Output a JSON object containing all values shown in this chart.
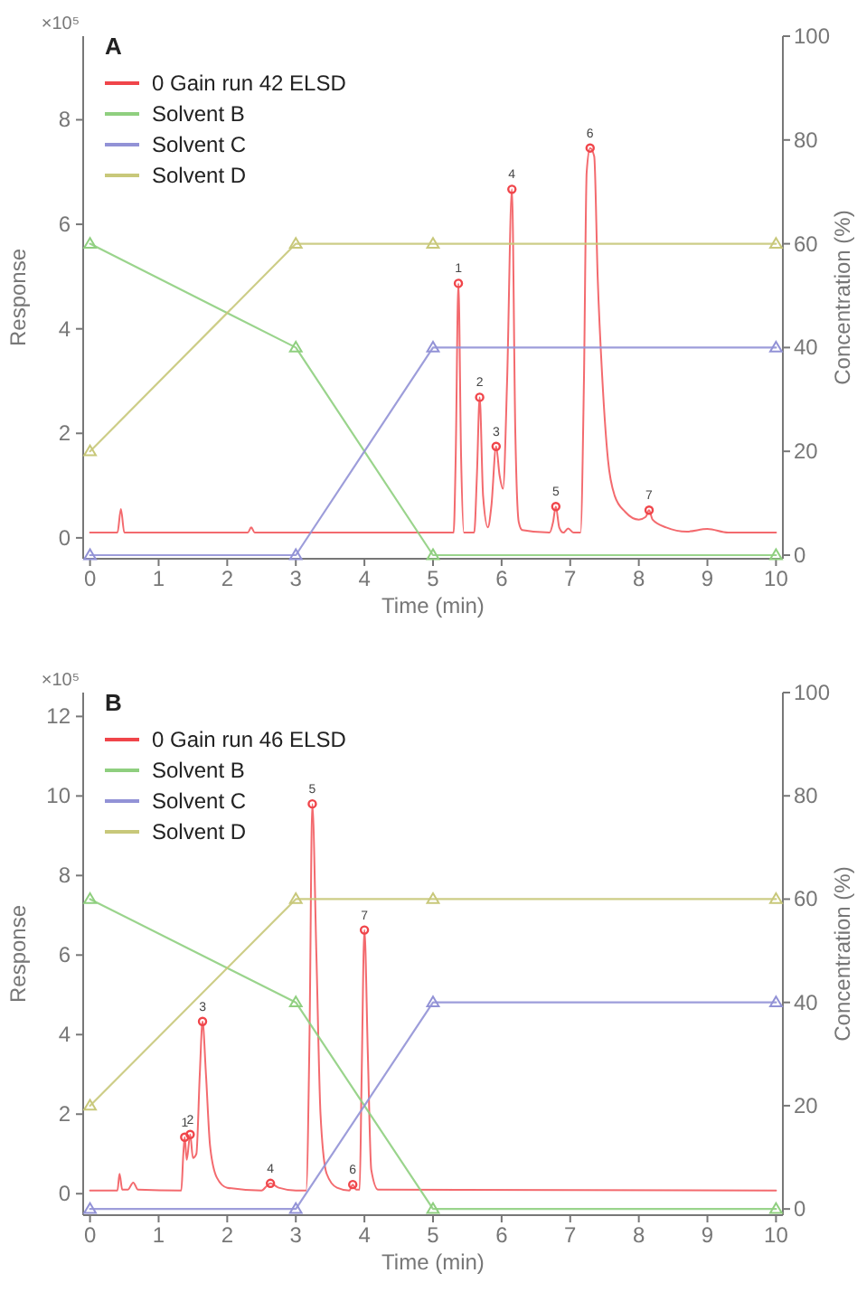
{
  "chart_data": [
    {
      "type": "line",
      "title": "A",
      "xlabel": "Time (min)",
      "ylabel": "Response",
      "y2label": "Concentration (%)",
      "xlim": [
        -0.1,
        10.1
      ],
      "xticks": [
        0,
        1,
        2,
        3,
        4,
        5,
        6,
        7,
        8,
        9,
        10
      ],
      "ylim": [
        -0.4,
        9.6
      ],
      "yticks": [
        0,
        2,
        4,
        6,
        8
      ],
      "y2lim": [
        -0.7,
        100
      ],
      "y2ticks": [
        0,
        20,
        40,
        60,
        80,
        100
      ],
      "legend": "top left",
      "grid": false,
      "annotations": [
        "×10⁵",
        {
          "text": "1",
          "x": 5.37,
          "y": 4.87
        },
        {
          "text": "2",
          "x": 5.68,
          "y": 2.69
        },
        {
          "text": "3",
          "x": 5.92,
          "y": 1.75
        },
        {
          "text": "4",
          "x": 6.15,
          "y": 6.67
        },
        {
          "text": "5",
          "x": 6.79,
          "y": 0.6
        },
        {
          "text": "6",
          "x": 7.29,
          "y": 7.46
        },
        {
          "text": "7",
          "x": 8.15,
          "y": 0.53
        }
      ],
      "series": [
        {
          "name": "0 Gain run 42 ELSD",
          "type": "line",
          "color": "#f0454a",
          "marker": "none",
          "x": [
            0,
            0.4,
            0.45,
            0.5,
            2.3,
            2.35,
            2.4,
            5.3,
            5.33,
            5.37,
            5.41,
            5.45,
            5.6,
            5.64,
            5.68,
            5.73,
            5.8,
            5.85,
            5.92,
            5.97,
            6.02,
            6.08,
            6.15,
            6.2,
            6.25,
            6.3,
            6.7,
            6.75,
            6.79,
            6.84,
            6.9,
            6.97,
            7.05,
            7.15,
            7.2,
            7.24,
            7.29,
            7.35,
            7.4,
            7.47,
            7.55,
            7.65,
            7.8,
            8.0,
            8.1,
            8.15,
            8.2,
            8.4,
            8.7,
            9.0,
            9.3,
            10
          ],
          "values": [
            0.1,
            0.1,
            0.55,
            0.1,
            0.1,
            0.2,
            0.1,
            0.1,
            1.5,
            4.87,
            1.5,
            0.1,
            0.1,
            1.2,
            2.69,
            0.8,
            0.2,
            0.6,
            1.75,
            1.2,
            0.94,
            3,
            6.67,
            2,
            0.3,
            0.15,
            0.1,
            0.3,
            0.6,
            0.2,
            0.1,
            0.18,
            0.1,
            0.1,
            3,
            7,
            7.46,
            7.3,
            5,
            3,
            1.5,
            0.8,
            0.5,
            0.35,
            0.4,
            0.53,
            0.35,
            0.2,
            0.12,
            0.17,
            0.1,
            0.1
          ]
        },
        {
          "type": "scatter",
          "color": "#f0454a",
          "marker": "circle",
          "x": [
            5.37,
            5.68,
            5.92,
            6.15,
            6.79,
            7.29,
            8.15
          ],
          "values": [
            4.87,
            2.69,
            1.75,
            6.67,
            0.6,
            7.46,
            0.53
          ]
        },
        {
          "name": "Solvent B",
          "type": "line",
          "axis": "y2",
          "color": "#8fcf7f",
          "marker": "triangle",
          "x": [
            0,
            3,
            5,
            10
          ],
          "values": [
            60,
            40,
            0,
            0
          ]
        },
        {
          "name": "Solvent C",
          "type": "line",
          "axis": "y2",
          "color": "#9292d6",
          "marker": "triangle",
          "x": [
            0,
            3,
            5,
            10
          ],
          "values": [
            0,
            0,
            40,
            40
          ]
        },
        {
          "name": "Solvent D",
          "type": "line",
          "axis": "y2",
          "color": "#c8c87a",
          "marker": "triangle",
          "x": [
            0,
            3,
            5,
            10
          ],
          "values": [
            20,
            60,
            60,
            60
          ]
        }
      ]
    },
    {
      "type": "line",
      "title": "B",
      "xlabel": "Time (min)",
      "ylabel": "Response",
      "y2label": "Concentration (%)",
      "xlim": [
        -0.1,
        10.1
      ],
      "xticks": [
        0,
        1,
        2,
        3,
        4,
        5,
        6,
        7,
        8,
        9,
        10
      ],
      "ylim": [
        -0.54,
        12.6
      ],
      "yticks": [
        0,
        2,
        4,
        6,
        8,
        10,
        12
      ],
      "y2lim": [
        -1.2,
        100
      ],
      "y2ticks": [
        0,
        20,
        40,
        60,
        80,
        100
      ],
      "legend": "top left",
      "grid": false,
      "annotations": [
        "×10⁵",
        {
          "text": "1",
          "x": 1.38,
          "y": 1.42
        },
        {
          "text": "2",
          "x": 1.46,
          "y": 1.49
        },
        {
          "text": "3",
          "x": 1.64,
          "y": 4.33
        },
        {
          "text": "4",
          "x": 2.63,
          "y": 0.26
        },
        {
          "text": "5",
          "x": 3.24,
          "y": 9.8
        },
        {
          "text": "6",
          "x": 3.83,
          "y": 0.23
        },
        {
          "text": "7",
          "x": 4.0,
          "y": 6.63
        }
      ],
      "series": [
        {
          "name": "0 Gain run 46 ELSD",
          "type": "line",
          "color": "#f0454a",
          "marker": "none",
          "x": [
            0,
            0.4,
            0.43,
            0.47,
            0.55,
            0.63,
            0.7,
            1.33,
            1.36,
            1.38,
            1.41,
            1.46,
            1.5,
            1.55,
            1.6,
            1.64,
            1.69,
            1.75,
            1.85,
            2.0,
            2.5,
            2.58,
            2.63,
            2.75,
            3.0,
            3.15,
            3.2,
            3.24,
            3.3,
            3.36,
            3.45,
            3.6,
            3.78,
            3.83,
            3.88,
            3.93,
            3.96,
            4.0,
            4.05,
            4.1,
            4.2,
            10
          ],
          "values": [
            0.08,
            0.08,
            0.5,
            0.1,
            0.1,
            0.28,
            0.1,
            0.08,
            1.0,
            1.42,
            0.85,
            1.49,
            0.9,
            1.0,
            3.0,
            4.33,
            3.0,
            1.2,
            0.4,
            0.15,
            0.08,
            0.2,
            0.26,
            0.15,
            0.08,
            0.08,
            4,
            9.8,
            6,
            2,
            0.5,
            0.15,
            0.08,
            0.23,
            0.1,
            0.1,
            3,
            6.63,
            3.5,
            0.6,
            0.1,
            0.08
          ]
        },
        {
          "type": "scatter",
          "color": "#f0454a",
          "marker": "circle",
          "x": [
            1.38,
            1.46,
            1.64,
            2.63,
            3.24,
            3.83,
            4.0
          ],
          "values": [
            1.42,
            1.49,
            4.33,
            0.26,
            9.8,
            0.23,
            6.63
          ]
        },
        {
          "name": "Solvent B",
          "type": "line",
          "axis": "y2",
          "color": "#8fcf7f",
          "marker": "triangle",
          "x": [
            0,
            3,
            5,
            10
          ],
          "values": [
            60,
            40,
            0,
            0
          ]
        },
        {
          "name": "Solvent C",
          "type": "line",
          "axis": "y2",
          "color": "#9292d6",
          "marker": "triangle",
          "x": [
            0,
            3,
            5,
            10
          ],
          "values": [
            0,
            0,
            40,
            40
          ]
        },
        {
          "name": "Solvent D",
          "type": "line",
          "axis": "y2",
          "color": "#c8c87a",
          "marker": "triangle",
          "x": [
            0,
            3,
            5,
            10
          ],
          "values": [
            20,
            60,
            60,
            60
          ]
        }
      ]
    }
  ]
}
